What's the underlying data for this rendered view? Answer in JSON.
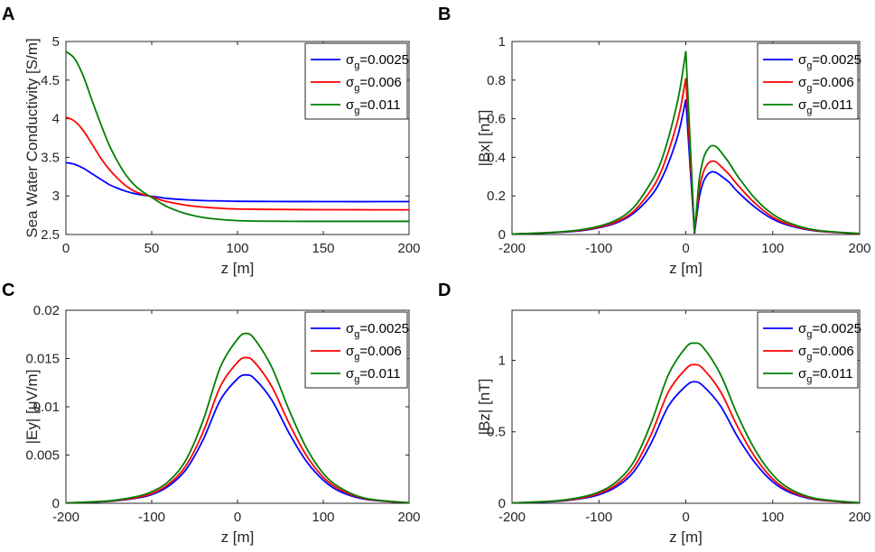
{
  "figure": {
    "panels": [
      "A",
      "B",
      "C",
      "D"
    ]
  },
  "chart_data": [
    {
      "id": "A",
      "type": "line",
      "title": "",
      "xlabel": "z [m]",
      "ylabel": "Sea Water Conductivity [S/m]",
      "xlim": [
        0,
        200
      ],
      "ylim": [
        2.5,
        5
      ],
      "xticks": [
        "0",
        "50",
        "100",
        "150",
        "200"
      ],
      "yticks": [
        "2.5",
        "3",
        "3.5",
        "4",
        "4.5",
        "5"
      ],
      "legend_position": "top-right",
      "series": [
        {
          "name_base": "σ",
          "name_sub": "g",
          "name_value": "=0.0025",
          "color": "#0000ff",
          "x": [
            0,
            5,
            10,
            15,
            20,
            25,
            30,
            35,
            40,
            45,
            50,
            55,
            60,
            70,
            80,
            90,
            100,
            120,
            140,
            160,
            180,
            200
          ],
          "y": [
            3.43,
            3.41,
            3.36,
            3.29,
            3.22,
            3.15,
            3.1,
            3.06,
            3.03,
            3.01,
            2.995,
            2.98,
            2.965,
            2.95,
            2.94,
            2.935,
            2.93,
            2.928,
            2.927,
            2.926,
            2.926,
            2.926
          ]
        },
        {
          "name_base": "σ",
          "name_sub": "g",
          "name_value": "=0.006",
          "color": "#ff0000",
          "x": [
            0,
            5,
            10,
            15,
            20,
            25,
            30,
            35,
            40,
            45,
            50,
            55,
            60,
            70,
            80,
            90,
            100,
            120,
            140,
            160,
            180,
            200
          ],
          "y": [
            4.02,
            3.97,
            3.85,
            3.68,
            3.5,
            3.35,
            3.23,
            3.13,
            3.06,
            3.02,
            2.99,
            2.95,
            2.92,
            2.88,
            2.855,
            2.84,
            2.83,
            2.825,
            2.822,
            2.821,
            2.82,
            2.82
          ]
        },
        {
          "name_base": "σ",
          "name_sub": "g",
          "name_value": "=0.011",
          "color": "#007f00",
          "x": [
            0,
            5,
            10,
            15,
            20,
            25,
            30,
            35,
            40,
            45,
            50,
            55,
            60,
            70,
            80,
            90,
            100,
            120,
            140,
            160,
            180,
            200
          ],
          "y": [
            4.87,
            4.78,
            4.56,
            4.25,
            3.95,
            3.67,
            3.45,
            3.27,
            3.14,
            3.05,
            2.98,
            2.91,
            2.85,
            2.77,
            2.72,
            2.695,
            2.68,
            2.672,
            2.67,
            2.67,
            2.67,
            2.67
          ]
        }
      ]
    },
    {
      "id": "B",
      "type": "line",
      "title": "",
      "xlabel": "z [m]",
      "ylabel": "|Bx| [nT]",
      "xlim": [
        -200,
        200
      ],
      "ylim": [
        0,
        1
      ],
      "xticks": [
        "-200",
        "-100",
        "0",
        "100",
        "200"
      ],
      "yticks": [
        "0",
        "0.2",
        "0.4",
        "0.6",
        "0.8",
        "1"
      ],
      "legend_position": "top-right",
      "series": [
        {
          "name_base": "σ",
          "name_sub": "g",
          "name_value": "=0.0025",
          "color": "#0000ff",
          "x": [
            -200,
            -150,
            -120,
            -100,
            -80,
            -60,
            -40,
            -30,
            -20,
            -10,
            -5,
            0,
            5,
            10,
            15,
            20,
            25,
            30,
            35,
            40,
            50,
            60,
            80,
            100,
            120,
            150,
            200
          ],
          "y": [
            0.002,
            0.01,
            0.02,
            0.035,
            0.06,
            0.11,
            0.2,
            0.27,
            0.37,
            0.5,
            0.59,
            0.7,
            0.35,
            0.005,
            0.18,
            0.27,
            0.31,
            0.325,
            0.32,
            0.305,
            0.27,
            0.22,
            0.14,
            0.08,
            0.045,
            0.018,
            0.004
          ]
        },
        {
          "name_base": "σ",
          "name_sub": "g",
          "name_value": "=0.006",
          "color": "#ff0000",
          "x": [
            -200,
            -150,
            -120,
            -100,
            -80,
            -60,
            -40,
            -30,
            -20,
            -10,
            -5,
            0,
            5,
            10,
            15,
            20,
            25,
            30,
            35,
            40,
            50,
            60,
            80,
            100,
            120,
            150,
            200
          ],
          "y": [
            0.002,
            0.011,
            0.022,
            0.038,
            0.066,
            0.12,
            0.23,
            0.31,
            0.43,
            0.58,
            0.68,
            0.81,
            0.41,
            0.008,
            0.22,
            0.32,
            0.365,
            0.38,
            0.375,
            0.355,
            0.31,
            0.255,
            0.16,
            0.09,
            0.05,
            0.02,
            0.004
          ]
        },
        {
          "name_base": "σ",
          "name_sub": "g",
          "name_value": "=0.011",
          "color": "#007f00",
          "x": [
            -200,
            -150,
            -120,
            -100,
            -80,
            -60,
            -40,
            -30,
            -20,
            -10,
            -5,
            0,
            5,
            10,
            15,
            20,
            25,
            30,
            35,
            40,
            50,
            60,
            80,
            100,
            120,
            150,
            200
          ],
          "y": [
            0.002,
            0.012,
            0.025,
            0.043,
            0.075,
            0.14,
            0.27,
            0.36,
            0.5,
            0.68,
            0.8,
            0.95,
            0.48,
            0.01,
            0.27,
            0.39,
            0.44,
            0.46,
            0.455,
            0.43,
            0.37,
            0.3,
            0.185,
            0.105,
            0.058,
            0.023,
            0.005
          ]
        }
      ]
    },
    {
      "id": "C",
      "type": "line",
      "title": "",
      "xlabel": "z [m]",
      "ylabel": "|Ey| [μV/m]",
      "xlim": [
        -200,
        200
      ],
      "ylim": [
        0,
        0.02
      ],
      "xticks": [
        "-200",
        "-100",
        "0",
        "100",
        "200"
      ],
      "yticks": [
        "0",
        "0.005",
        "0.01",
        "0.015",
        "0.02"
      ],
      "legend_position": "top-right",
      "series": [
        {
          "name_base": "σ",
          "name_sub": "g",
          "name_value": "=0.0025",
          "color": "#0000ff",
          "x": [
            -200,
            -150,
            -120,
            -100,
            -80,
            -60,
            -40,
            -20,
            0,
            10,
            20,
            40,
            60,
            80,
            100,
            120,
            150,
            200
          ],
          "y": [
            3e-05,
            0.0002,
            0.0005,
            0.0009,
            0.0018,
            0.0035,
            0.0066,
            0.0107,
            0.0129,
            0.0133,
            0.0129,
            0.0107,
            0.0073,
            0.0044,
            0.0024,
            0.0012,
            0.0004,
            5e-05
          ]
        },
        {
          "name_base": "σ",
          "name_sub": "g",
          "name_value": "=0.006",
          "color": "#ff0000",
          "x": [
            -200,
            -150,
            -120,
            -100,
            -80,
            -60,
            -40,
            -20,
            0,
            10,
            20,
            40,
            60,
            80,
            100,
            120,
            150,
            200
          ],
          "y": [
            3e-05,
            0.00022,
            0.00055,
            0.001,
            0.002,
            0.0039,
            0.0074,
            0.0121,
            0.0146,
            0.0151,
            0.0146,
            0.0121,
            0.0083,
            0.005,
            0.0027,
            0.0014,
            0.00045,
            5e-05
          ]
        },
        {
          "name_base": "σ",
          "name_sub": "g",
          "name_value": "=0.011",
          "color": "#007f00",
          "x": [
            -200,
            -150,
            -120,
            -100,
            -80,
            -60,
            -40,
            -20,
            0,
            10,
            20,
            40,
            60,
            80,
            100,
            120,
            150,
            200
          ],
          "y": [
            3e-05,
            0.00025,
            0.00065,
            0.0012,
            0.0023,
            0.0045,
            0.0086,
            0.0141,
            0.017,
            0.0176,
            0.017,
            0.0141,
            0.0097,
            0.0058,
            0.0031,
            0.0016,
            0.0005,
            6e-05
          ]
        }
      ]
    },
    {
      "id": "D",
      "type": "line",
      "title": "",
      "xlabel": "z [m]",
      "ylabel": "|Bz| [nT]",
      "xlim": [
        -200,
        200
      ],
      "ylim": [
        0,
        1.35
      ],
      "xticks": [
        "-200",
        "-100",
        "0",
        "100",
        "200"
      ],
      "yticks": [
        "0",
        "0.5",
        "1"
      ],
      "legend_position": "top-right",
      "series": [
        {
          "name_base": "σ",
          "name_sub": "g",
          "name_value": "=0.0025",
          "color": "#0000ff",
          "x": [
            -200,
            -150,
            -120,
            -100,
            -80,
            -60,
            -40,
            -20,
            0,
            10,
            20,
            40,
            60,
            80,
            100,
            120,
            150,
            200
          ],
          "y": [
            0.002,
            0.013,
            0.033,
            0.06,
            0.115,
            0.22,
            0.42,
            0.68,
            0.82,
            0.85,
            0.82,
            0.68,
            0.46,
            0.28,
            0.15,
            0.075,
            0.025,
            0.003
          ]
        },
        {
          "name_base": "σ",
          "name_sub": "g",
          "name_value": "=0.006",
          "color": "#ff0000",
          "x": [
            -200,
            -150,
            -120,
            -100,
            -80,
            -60,
            -40,
            -20,
            0,
            10,
            20,
            40,
            60,
            80,
            100,
            120,
            150,
            200
          ],
          "y": [
            0.002,
            0.015,
            0.037,
            0.068,
            0.13,
            0.25,
            0.48,
            0.78,
            0.94,
            0.97,
            0.94,
            0.78,
            0.53,
            0.32,
            0.17,
            0.085,
            0.028,
            0.003
          ]
        },
        {
          "name_base": "σ",
          "name_sub": "g",
          "name_value": "=0.011",
          "color": "#007f00",
          "x": [
            -200,
            -150,
            -120,
            -100,
            -80,
            -60,
            -40,
            -20,
            0,
            10,
            20,
            40,
            60,
            80,
            100,
            120,
            150,
            200
          ],
          "y": [
            0.002,
            0.017,
            0.043,
            0.079,
            0.15,
            0.29,
            0.56,
            0.9,
            1.09,
            1.12,
            1.09,
            0.9,
            0.61,
            0.37,
            0.2,
            0.1,
            0.033,
            0.004
          ]
        }
      ]
    }
  ]
}
